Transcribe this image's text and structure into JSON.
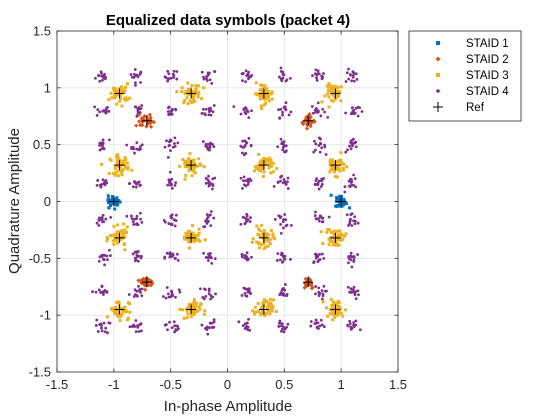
{
  "chart_data": {
    "type": "scatter",
    "title": "Equalized data symbols (packet 4)",
    "xlabel": "In-phase Amplitude",
    "ylabel": "Quadrature Amplitude",
    "xlim": [
      -1.5,
      1.5
    ],
    "ylim": [
      -1.5,
      1.5
    ],
    "x_ticks": [
      -1.5,
      -1,
      -0.5,
      0,
      0.5,
      1,
      1.5
    ],
    "x_tick_labels": [
      "-1.5",
      "-1",
      "-0.5",
      "0",
      "0.5",
      "1",
      "1.5"
    ],
    "y_ticks": [
      -1.5,
      -1,
      -0.5,
      0,
      0.5,
      1,
      1.5
    ],
    "y_tick_labels": [
      "-1.5",
      "-1",
      "-0.5",
      "0",
      "0.5",
      "1",
      "1.5"
    ],
    "grid": true,
    "legend_position": "outside-top-right",
    "series": [
      {
        "name": "STAID 1",
        "color": "#0072BD",
        "marker": "square",
        "points": [
          [
            -1.0,
            0.0
          ],
          [
            1.0,
            0.0
          ]
        ]
      },
      {
        "name": "STAID 2",
        "color": "#D95319",
        "marker": "diamond",
        "points": [
          [
            -0.71,
            0.71
          ],
          [
            0.71,
            0.71
          ],
          [
            -0.71,
            -0.71
          ],
          [
            0.71,
            -0.71
          ]
        ]
      },
      {
        "name": "STAID 3",
        "color": "#EDB120",
        "marker": "square",
        "points": [
          [
            -0.95,
            0.95
          ],
          [
            -0.32,
            0.95
          ],
          [
            0.32,
            0.95
          ],
          [
            0.95,
            0.95
          ],
          [
            -0.95,
            0.32
          ],
          [
            -0.32,
            0.32
          ],
          [
            0.32,
            0.32
          ],
          [
            0.95,
            0.32
          ],
          [
            -0.95,
            -0.32
          ],
          [
            -0.32,
            -0.32
          ],
          [
            0.32,
            -0.32
          ],
          [
            0.95,
            -0.32
          ],
          [
            -0.95,
            -0.95
          ],
          [
            -0.32,
            -0.95
          ],
          [
            0.32,
            -0.95
          ],
          [
            0.95,
            -0.95
          ]
        ]
      },
      {
        "name": "STAID 4",
        "color": "#7E2F8E",
        "marker": "circle",
        "points": [
          [
            -1.1,
            1.1
          ],
          [
            -0.8,
            1.1
          ],
          [
            -0.49,
            1.1
          ],
          [
            -0.16,
            1.1
          ],
          [
            0.16,
            1.1
          ],
          [
            0.49,
            1.1
          ],
          [
            0.8,
            1.1
          ],
          [
            1.1,
            1.1
          ],
          [
            -1.1,
            0.8
          ],
          [
            -0.8,
            0.8
          ],
          [
            -0.49,
            0.8
          ],
          [
            -0.16,
            0.8
          ],
          [
            0.16,
            0.8
          ],
          [
            0.49,
            0.8
          ],
          [
            0.8,
            0.8
          ],
          [
            1.1,
            0.8
          ],
          [
            -1.1,
            0.49
          ],
          [
            -0.8,
            0.49
          ],
          [
            -0.49,
            0.49
          ],
          [
            -0.16,
            0.49
          ],
          [
            0.16,
            0.49
          ],
          [
            0.49,
            0.49
          ],
          [
            0.8,
            0.49
          ],
          [
            1.1,
            0.49
          ],
          [
            -1.1,
            0.16
          ],
          [
            -0.8,
            0.16
          ],
          [
            -0.49,
            0.16
          ],
          [
            -0.16,
            0.16
          ],
          [
            0.16,
            0.16
          ],
          [
            0.49,
            0.16
          ],
          [
            0.8,
            0.16
          ],
          [
            1.1,
            0.16
          ],
          [
            -1.1,
            -0.16
          ],
          [
            -0.8,
            -0.16
          ],
          [
            -0.49,
            -0.16
          ],
          [
            -0.16,
            -0.16
          ],
          [
            0.16,
            -0.16
          ],
          [
            0.49,
            -0.16
          ],
          [
            0.8,
            -0.16
          ],
          [
            1.1,
            -0.16
          ],
          [
            -1.1,
            -0.49
          ],
          [
            -0.8,
            -0.49
          ],
          [
            -0.49,
            -0.49
          ],
          [
            -0.16,
            -0.49
          ],
          [
            0.16,
            -0.49
          ],
          [
            0.49,
            -0.49
          ],
          [
            0.8,
            -0.49
          ],
          [
            1.1,
            -0.49
          ],
          [
            -1.1,
            -0.8
          ],
          [
            -0.8,
            -0.8
          ],
          [
            -0.49,
            -0.8
          ],
          [
            -0.16,
            -0.8
          ],
          [
            0.16,
            -0.8
          ],
          [
            0.49,
            -0.8
          ],
          [
            0.8,
            -0.8
          ],
          [
            1.1,
            -0.8
          ],
          [
            -1.1,
            -1.1
          ],
          [
            -0.8,
            -1.1
          ],
          [
            -0.49,
            -1.1
          ],
          [
            -0.16,
            -1.1
          ],
          [
            0.16,
            -1.1
          ],
          [
            0.49,
            -1.1
          ],
          [
            0.8,
            -1.1
          ],
          [
            1.1,
            -1.1
          ]
        ]
      },
      {
        "name": "Ref",
        "color": "#000000",
        "marker": "plus",
        "points": [
          [
            -0.95,
            0.95
          ],
          [
            -0.32,
            0.95
          ],
          [
            0.32,
            0.95
          ],
          [
            0.95,
            0.95
          ],
          [
            -0.71,
            0.71
          ],
          [
            0.71,
            0.71
          ],
          [
            -0.95,
            0.32
          ],
          [
            -0.32,
            0.32
          ],
          [
            0.32,
            0.32
          ],
          [
            0.95,
            0.32
          ],
          [
            -1.0,
            0.0
          ],
          [
            1.0,
            0.0
          ],
          [
            -0.95,
            -0.32
          ],
          [
            -0.32,
            -0.32
          ],
          [
            0.32,
            -0.32
          ],
          [
            0.95,
            -0.32
          ],
          [
            -0.71,
            -0.71
          ],
          [
            0.71,
            -0.71
          ],
          [
            -0.95,
            -0.95
          ],
          [
            -0.32,
            -0.95
          ],
          [
            0.32,
            -0.95
          ],
          [
            0.95,
            -0.95
          ]
        ]
      }
    ]
  }
}
